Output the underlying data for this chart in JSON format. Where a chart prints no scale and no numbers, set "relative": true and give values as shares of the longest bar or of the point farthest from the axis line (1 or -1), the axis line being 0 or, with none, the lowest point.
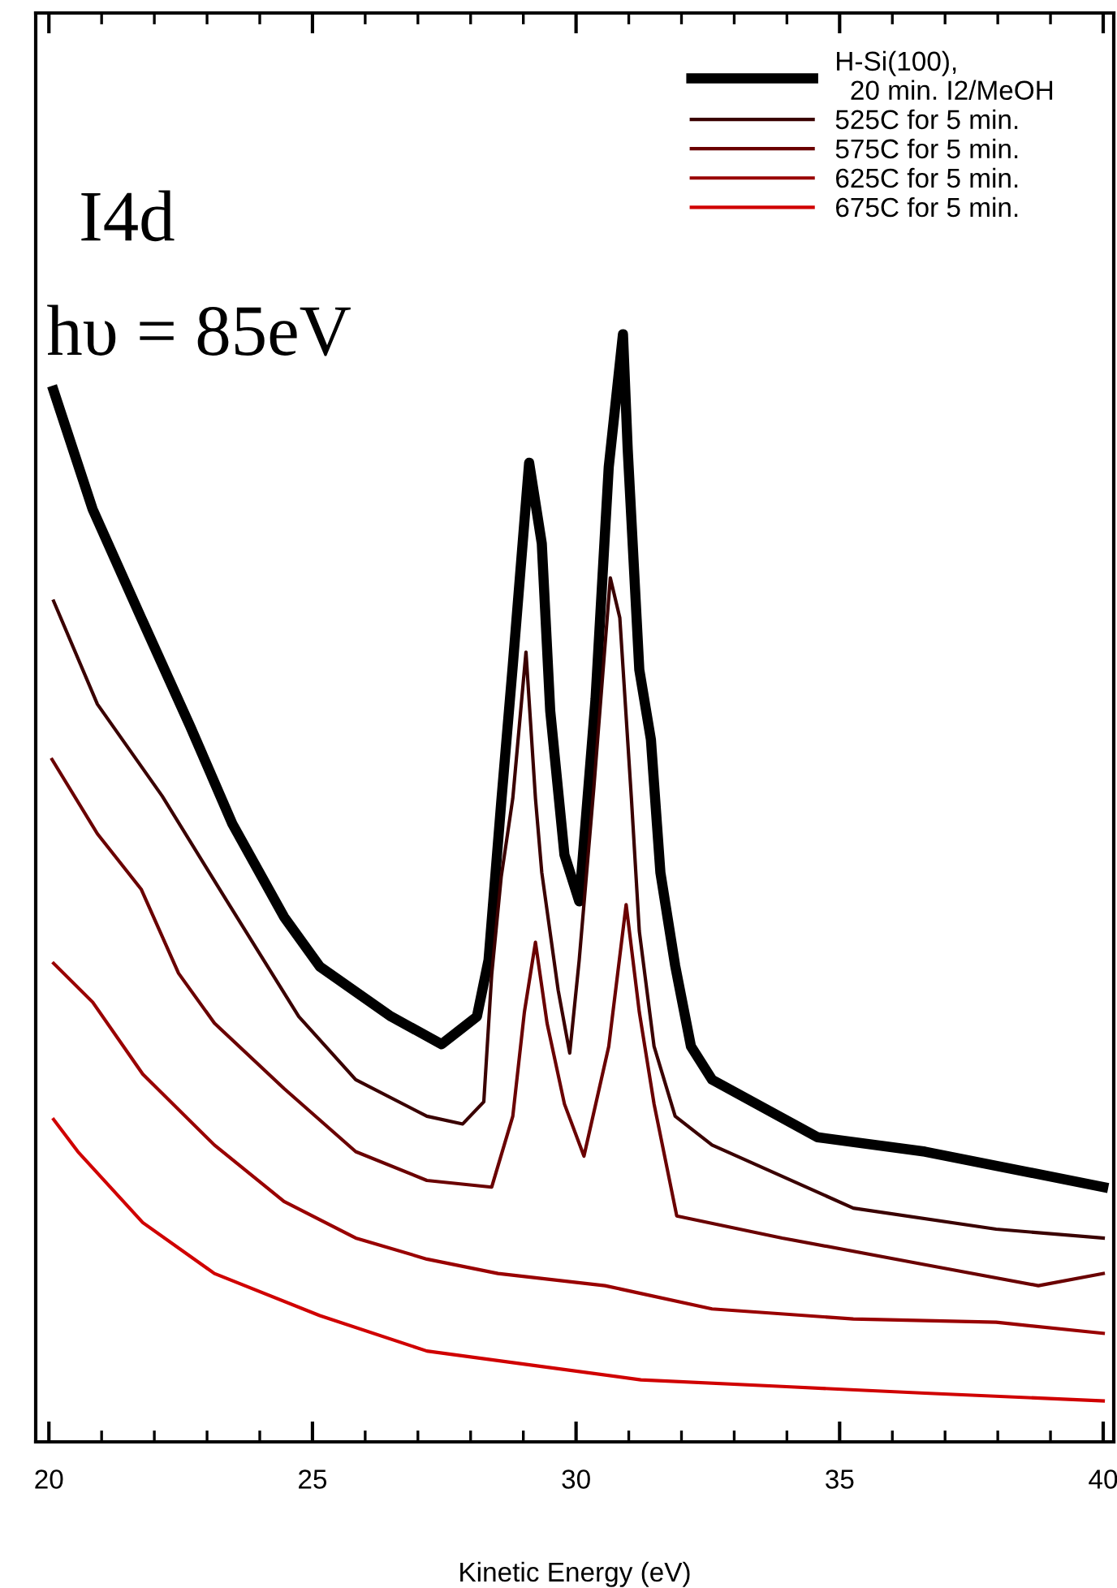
{
  "chart_data": {
    "type": "line",
    "relative": true,
    "xlabel": "Kinetic Energy (eV)",
    "annotations": [
      "I4d",
      "hυ = 85eV"
    ],
    "xlim": [
      19.75,
      40.2
    ],
    "xticks": [
      20,
      25,
      30,
      35,
      40
    ],
    "tick_labels": "x",
    "grid": false,
    "legend": "top right",
    "marker": "none",
    "line_style": "solid",
    "series": [
      {
        "name": "H-Si(100),\n  20 min. I2/MeOH",
        "color": "#000000",
        "x": [
          20.09,
          20.83,
          21.75,
          22.68,
          23.48,
          24.46,
          25.14,
          26.49,
          27.45,
          28.12,
          28.34,
          28.58,
          28.8,
          29.11,
          29.35,
          29.51,
          29.78,
          30.06,
          30.37,
          30.62,
          30.89,
          30.98,
          31.2,
          31.42,
          31.6,
          31.88,
          32.18,
          32.58,
          34.58,
          36.62,
          40.0
        ],
        "values": [
          0.949,
          0.842,
          0.744,
          0.646,
          0.558,
          0.474,
          0.429,
          0.384,
          0.359,
          0.384,
          0.435,
          0.577,
          0.701,
          0.884,
          0.811,
          0.66,
          0.53,
          0.488,
          0.671,
          0.88,
          1.0,
          0.896,
          0.697,
          0.634,
          0.514,
          0.43,
          0.357,
          0.327,
          0.275,
          0.262,
          0.23
        ]
      },
      {
        "name": "525C for 5 min.",
        "color": "#3a0000",
        "x": [
          20.09,
          20.92,
          22.15,
          23.38,
          24.74,
          25.82,
          27.17,
          27.85,
          28.25,
          28.4,
          28.58,
          28.8,
          29.05,
          29.23,
          29.35,
          29.66,
          29.88,
          30.06,
          30.34,
          30.65,
          30.83,
          31.05,
          31.2,
          31.48,
          31.88,
          32.58,
          35.26,
          37.97,
          40.0
        ],
        "values": [
          0.759,
          0.666,
          0.583,
          0.488,
          0.384,
          0.327,
          0.294,
          0.287,
          0.307,
          0.422,
          0.51,
          0.581,
          0.713,
          0.581,
          0.514,
          0.408,
          0.351,
          0.435,
          0.592,
          0.78,
          0.744,
          0.581,
          0.461,
          0.357,
          0.294,
          0.268,
          0.211,
          0.192,
          0.184
        ]
      },
      {
        "name": "575C for 5 min.",
        "color": "#6a0000",
        "x": [
          20.06,
          20.92,
          21.75,
          22.46,
          23.14,
          24.46,
          25.82,
          27.17,
          28.4,
          28.8,
          29.02,
          29.23,
          29.45,
          29.78,
          30.15,
          30.62,
          30.95,
          31.2,
          31.48,
          31.91,
          33.91,
          36.62,
          38.77,
          40.0
        ],
        "values": [
          0.616,
          0.549,
          0.499,
          0.423,
          0.378,
          0.319,
          0.262,
          0.236,
          0.23,
          0.294,
          0.388,
          0.451,
          0.378,
          0.305,
          0.258,
          0.357,
          0.485,
          0.388,
          0.305,
          0.204,
          0.184,
          0.16,
          0.141,
          0.152
        ]
      },
      {
        "name": "625C for 5 min.",
        "color": "#990000",
        "x": [
          20.09,
          20.83,
          21.78,
          23.14,
          24.46,
          25.82,
          27.17,
          28.52,
          30.55,
          32.58,
          35.26,
          37.97,
          40.0
        ],
        "values": [
          0.432,
          0.397,
          0.332,
          0.268,
          0.217,
          0.184,
          0.165,
          0.152,
          0.141,
          0.12,
          0.111,
          0.108,
          0.098
        ]
      },
      {
        "name": "675C for 5 min.",
        "color": "#d00000",
        "x": [
          20.09,
          20.55,
          21.78,
          23.14,
          25.14,
          27.17,
          29.2,
          31.23,
          33.91,
          36.62,
          40.0
        ],
        "values": [
          0.291,
          0.262,
          0.198,
          0.152,
          0.114,
          0.082,
          0.069,
          0.056,
          0.05,
          0.044,
          0.037
        ]
      }
    ]
  }
}
